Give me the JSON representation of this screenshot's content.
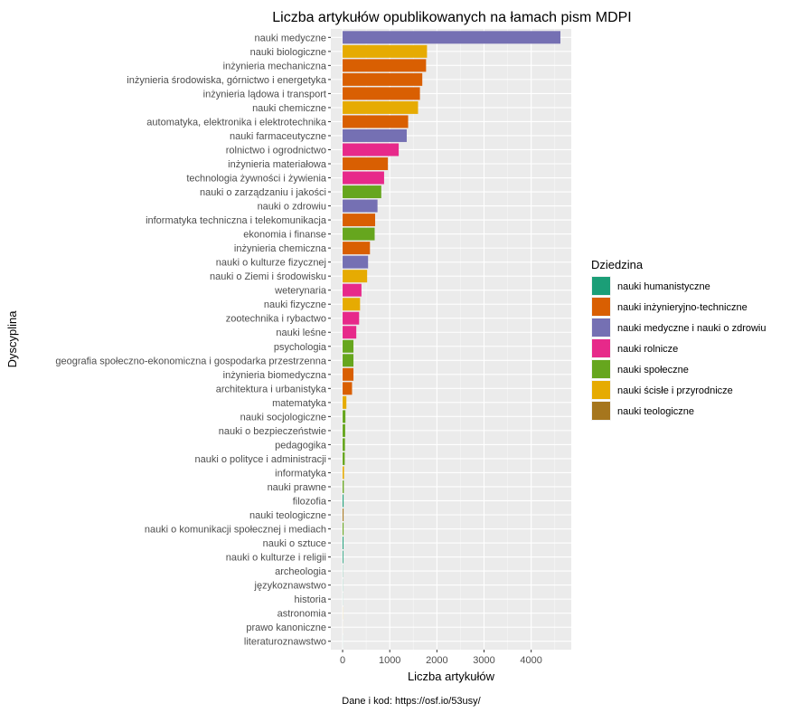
{
  "chart_data": {
    "type": "bar",
    "orientation": "horizontal",
    "title": "Liczba artykułów opublikowanych na łamach pism MDPI",
    "xlabel": "Liczba artykułów",
    "ylabel": "Dyscyplina",
    "caption": "Dane i kod: https://osf.io/53usy/",
    "xlim": [
      -250,
      4850
    ],
    "x_ticks": [
      0,
      1000,
      2000,
      3000,
      4000
    ],
    "grid": true,
    "legend": {
      "title": "Dziedzina",
      "position": "right",
      "entries": [
        {
          "name": "nauki humanistyczne",
          "color": "#1B9E77"
        },
        {
          "name": "nauki inżynieryjno-techniczne",
          "color": "#D95F02"
        },
        {
          "name": "nauki medyczne i nauki o zdrowiu",
          "color": "#7570B3"
        },
        {
          "name": "nauki rolnicze",
          "color": "#E7298A"
        },
        {
          "name": "nauki społeczne",
          "color": "#66A61E"
        },
        {
          "name": "nauki ścisłe i przyrodnicze",
          "color": "#E6AB02"
        },
        {
          "name": "nauki teologiczne",
          "color": "#A6761D"
        }
      ]
    },
    "bars": [
      {
        "label": "nauki medyczne",
        "value": 4620,
        "field": "nauki medyczne i nauki o zdrowiu"
      },
      {
        "label": "nauki biologiczne",
        "value": 1790,
        "field": "nauki ścisłe i przyrodnicze"
      },
      {
        "label": "inżynieria mechaniczna",
        "value": 1770,
        "field": "nauki inżynieryjno-techniczne"
      },
      {
        "label": "inżynieria środowiska, górnictwo i energetyka",
        "value": 1690,
        "field": "nauki inżynieryjno-techniczne"
      },
      {
        "label": "inżynieria lądowa i transport",
        "value": 1640,
        "field": "nauki inżynieryjno-techniczne"
      },
      {
        "label": "nauki chemiczne",
        "value": 1600,
        "field": "nauki ścisłe i przyrodnicze"
      },
      {
        "label": "automatyka, elektronika i elektrotechnika",
        "value": 1390,
        "field": "nauki inżynieryjno-techniczne"
      },
      {
        "label": "nauki farmaceutyczne",
        "value": 1360,
        "field": "nauki medyczne i nauki o zdrowiu"
      },
      {
        "label": "rolnictwo i ogrodnictwo",
        "value": 1190,
        "field": "nauki rolnicze"
      },
      {
        "label": "inżynieria materiałowa",
        "value": 960,
        "field": "nauki inżynieryjno-techniczne"
      },
      {
        "label": "technologia żywności i żywienia",
        "value": 880,
        "field": "nauki rolnicze"
      },
      {
        "label": "nauki o zarządzaniu i jakości",
        "value": 820,
        "field": "nauki społeczne"
      },
      {
        "label": "nauki o zdrowiu",
        "value": 740,
        "field": "nauki medyczne i nauki o zdrowiu"
      },
      {
        "label": "informatyka techniczna i telekomunikacja",
        "value": 690,
        "field": "nauki inżynieryjno-techniczne"
      },
      {
        "label": "ekonomia i finanse",
        "value": 680,
        "field": "nauki społeczne"
      },
      {
        "label": "inżynieria chemiczna",
        "value": 580,
        "field": "nauki inżynieryjno-techniczne"
      },
      {
        "label": "nauki o kulturze fizycznej",
        "value": 540,
        "field": "nauki medyczne i nauki o zdrowiu"
      },
      {
        "label": "nauki o Ziemi i środowisku",
        "value": 520,
        "field": "nauki ścisłe i przyrodnicze"
      },
      {
        "label": "weterynaria",
        "value": 400,
        "field": "nauki rolnicze"
      },
      {
        "label": "nauki fizyczne",
        "value": 370,
        "field": "nauki ścisłe i przyrodnicze"
      },
      {
        "label": "zootechnika i rybactwo",
        "value": 350,
        "field": "nauki rolnicze"
      },
      {
        "label": "nauki leśne",
        "value": 290,
        "field": "nauki rolnicze"
      },
      {
        "label": "psychologia",
        "value": 230,
        "field": "nauki społeczne"
      },
      {
        "label": "geografia społeczno-ekonomiczna i gospodarka przestrzenna",
        "value": 230,
        "field": "nauki społeczne"
      },
      {
        "label": "inżynieria biomedyczna",
        "value": 230,
        "field": "nauki inżynieryjno-techniczne"
      },
      {
        "label": "architektura i urbanistyka",
        "value": 200,
        "field": "nauki inżynieryjno-techniczne"
      },
      {
        "label": "matematyka",
        "value": 80,
        "field": "nauki ścisłe i przyrodnicze"
      },
      {
        "label": "nauki socjologiczne",
        "value": 60,
        "field": "nauki społeczne"
      },
      {
        "label": "nauki o bezpieczeństwie",
        "value": 55,
        "field": "nauki społeczne"
      },
      {
        "label": "pedagogika",
        "value": 50,
        "field": "nauki społeczne"
      },
      {
        "label": "nauki o polityce i administracji",
        "value": 45,
        "field": "nauki społeczne"
      },
      {
        "label": "informatyka",
        "value": 30,
        "field": "nauki ścisłe i przyrodnicze"
      },
      {
        "label": "nauki prawne",
        "value": 25,
        "field": "nauki społeczne"
      },
      {
        "label": "filozofia",
        "value": 20,
        "field": "nauki humanistyczne"
      },
      {
        "label": "nauki teologiczne",
        "value": 20,
        "field": "nauki teologiczne"
      },
      {
        "label": "nauki o komunikacji społecznej i mediach",
        "value": 20,
        "field": "nauki społeczne"
      },
      {
        "label": "nauki o sztuce",
        "value": 18,
        "field": "nauki humanistyczne"
      },
      {
        "label": "nauki o kulturze i religii",
        "value": 15,
        "field": "nauki humanistyczne"
      },
      {
        "label": "archeologia",
        "value": 4,
        "field": "nauki humanistyczne"
      },
      {
        "label": "językoznawstwo",
        "value": 3,
        "field": "nauki humanistyczne"
      },
      {
        "label": "historia",
        "value": 2,
        "field": "nauki humanistyczne"
      },
      {
        "label": "astronomia",
        "value": 2,
        "field": "nauki ścisłe i przyrodnicze"
      },
      {
        "label": "prawo kanoniczne",
        "value": 1,
        "field": "nauki teologiczne"
      },
      {
        "label": "literaturoznawstwo",
        "value": 1,
        "field": "nauki humanistyczne"
      }
    ]
  }
}
